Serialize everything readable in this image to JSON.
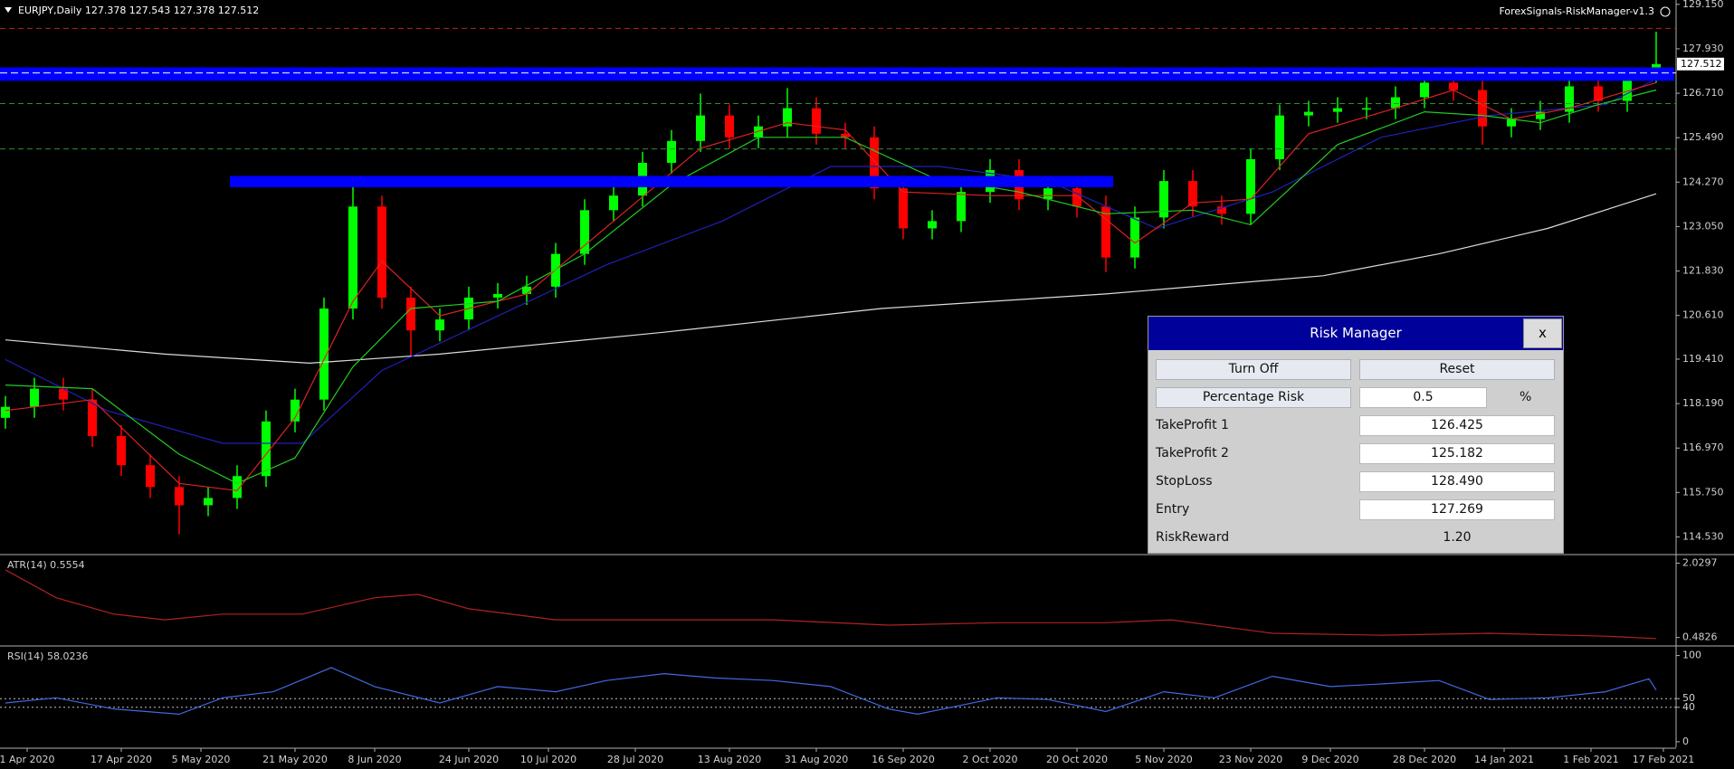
{
  "window": {
    "indicator_name": "ForexSignals-RiskManager-v1.3"
  },
  "chart_data": [
    {
      "type": "candlestick",
      "title": "EURJPY,Daily  127.378 127.543 127.378 127.512",
      "up_color": "#00ff00",
      "down_color": "#ff0000",
      "x": [
        0,
        4,
        8,
        12,
        16,
        20,
        24,
        28,
        32,
        36,
        40,
        44,
        48,
        52,
        56,
        60,
        64,
        68,
        72,
        76,
        80,
        84,
        88,
        92,
        96,
        100,
        104,
        108,
        112,
        116,
        120,
        124,
        128,
        132,
        136,
        140,
        144,
        148,
        152,
        156,
        160,
        164,
        168,
        172,
        176,
        180,
        184,
        188,
        192,
        196,
        200,
        204,
        208,
        212,
        216,
        220,
        224,
        228
      ],
      "open": [
        117.8,
        118.1,
        118.6,
        118.3,
        117.3,
        116.5,
        115.9,
        115.4,
        115.6,
        116.2,
        117.7,
        118.3,
        120.8,
        123.6,
        121.1,
        120.2,
        120.5,
        121.1,
        121.2,
        121.4,
        122.3,
        123.5,
        123.9,
        124.8,
        125.4,
        126.1,
        125.5,
        125.8,
        126.3,
        125.6,
        125.5,
        124.1,
        123.0,
        123.2,
        124.0,
        124.6,
        123.8,
        124.1,
        123.6,
        122.2,
        123.3,
        124.3,
        123.6,
        123.4,
        124.9,
        126.1,
        126.2,
        126.3,
        126.3,
        126.6,
        127.0,
        126.8,
        125.8,
        126.0,
        126.2,
        126.9,
        126.5,
        127.1
      ],
      "high": [
        118.4,
        118.9,
        118.9,
        118.6,
        117.6,
        116.8,
        116.2,
        115.9,
        116.5,
        118.0,
        118.6,
        121.1,
        124.3,
        123.9,
        121.4,
        120.8,
        121.4,
        121.5,
        121.7,
        122.6,
        123.8,
        124.2,
        125.1,
        125.7,
        126.7,
        126.4,
        126.1,
        126.85,
        126.6,
        125.9,
        125.8,
        124.4,
        123.5,
        124.3,
        124.9,
        124.9,
        124.4,
        124.4,
        123.9,
        123.6,
        124.6,
        124.6,
        123.9,
        125.2,
        126.4,
        126.5,
        126.6,
        126.6,
        126.9,
        127.35,
        127.3,
        127.1,
        126.3,
        126.5,
        127.2,
        127.2,
        127.4,
        128.4
      ],
      "low": [
        117.5,
        117.8,
        118.0,
        117.0,
        116.2,
        115.6,
        114.6,
        115.1,
        115.3,
        115.9,
        117.4,
        118.0,
        120.5,
        120.8,
        119.5,
        119.9,
        120.2,
        120.8,
        120.9,
        121.1,
        122.0,
        123.2,
        123.6,
        124.5,
        125.1,
        125.2,
        125.2,
        125.5,
        125.3,
        125.2,
        123.8,
        122.7,
        122.7,
        122.9,
        123.7,
        123.5,
        123.5,
        123.3,
        121.8,
        121.9,
        123.0,
        123.3,
        123.1,
        123.1,
        124.6,
        125.8,
        125.9,
        126.0,
        126.0,
        126.3,
        126.5,
        125.3,
        125.5,
        125.7,
        125.9,
        126.2,
        126.2,
        127.0
      ],
      "close": [
        118.1,
        118.6,
        118.3,
        117.3,
        116.5,
        115.9,
        115.4,
        115.6,
        116.2,
        117.7,
        118.3,
        120.8,
        123.6,
        121.1,
        120.2,
        120.5,
        121.1,
        121.2,
        121.4,
        122.3,
        123.5,
        123.9,
        124.8,
        125.4,
        126.1,
        125.5,
        125.8,
        126.3,
        125.6,
        125.5,
        124.1,
        123.0,
        123.2,
        124.0,
        124.6,
        123.8,
        124.1,
        123.6,
        122.2,
        123.3,
        124.3,
        123.6,
        123.4,
        124.9,
        126.1,
        126.2,
        126.3,
        126.3,
        126.6,
        127.0,
        126.8,
        125.8,
        126.0,
        126.2,
        126.9,
        126.5,
        127.1,
        127.512
      ],
      "series": [
        {
          "color": "#dcdcdc",
          "x": [
            0,
            22,
            42,
            60,
            91,
            121,
            152,
            182,
            198,
            213,
            228
          ],
          "values": [
            119.94,
            119.55,
            119.3,
            119.55,
            120.15,
            120.8,
            121.2,
            121.7,
            122.3,
            123.0,
            123.95
          ]
        },
        {
          "color": "#2020b8",
          "x": [
            0,
            14,
            30,
            41,
            52,
            67,
            83,
            99,
            114,
            129,
            144,
            159,
            175,
            190,
            205,
            221,
            228
          ],
          "values": [
            119.4,
            118.0,
            117.1,
            117.1,
            119.1,
            120.5,
            122.0,
            123.2,
            124.7,
            124.7,
            124.3,
            123.0,
            124.0,
            125.5,
            126.1,
            126.4,
            127.1
          ]
        },
        {
          "color": "#dd2222",
          "x": [
            0,
            12,
            24,
            32,
            40,
            48,
            52,
            60,
            72,
            84,
            96,
            108,
            116,
            124,
            136,
            148,
            156,
            164,
            172,
            180,
            192,
            200,
            208,
            216,
            228
          ],
          "values": [
            118.0,
            118.3,
            116.0,
            115.8,
            117.8,
            121.0,
            122.1,
            120.6,
            121.2,
            123.2,
            125.2,
            125.9,
            125.7,
            124.0,
            123.9,
            123.9,
            122.6,
            123.7,
            123.8,
            125.6,
            126.3,
            126.8,
            126.0,
            126.3,
            127.0
          ]
        },
        {
          "color": "#22cc22",
          "x": [
            0,
            12,
            24,
            32,
            40,
            48,
            56,
            68,
            80,
            92,
            104,
            116,
            128,
            140,
            152,
            164,
            172,
            184,
            196,
            204,
            212,
            220,
            228
          ],
          "values": [
            118.7,
            118.6,
            116.8,
            116.0,
            116.7,
            119.2,
            120.8,
            121.0,
            122.3,
            124.2,
            125.5,
            125.5,
            124.4,
            124.0,
            123.4,
            123.5,
            123.1,
            125.3,
            126.2,
            126.1,
            125.9,
            126.4,
            126.8
          ]
        }
      ],
      "zones": [
        {
          "color": "#0000ff",
          "from": 127.05,
          "to": 127.42
        },
        {
          "color": "#0000ff",
          "from": 124.13,
          "to": 124.44,
          "x": [
            31,
            153
          ]
        }
      ],
      "current_price": 127.512,
      "xlim": [
        -0.75,
        230.5
      ],
      "xticks": [
        {
          "value": 3,
          "label": "1 Apr 2020"
        },
        {
          "value": 16,
          "label": "17 Apr 2020"
        },
        {
          "value": 27,
          "label": "5 May 2020"
        },
        {
          "value": 40,
          "label": "21 May 2020"
        },
        {
          "value": 51,
          "label": "8 Jun 2020"
        },
        {
          "value": 64,
          "label": "24 Jun 2020"
        },
        {
          "value": 75,
          "label": "10 Jul 2020"
        },
        {
          "value": 87,
          "label": "28 Jul 2020"
        },
        {
          "value": 100,
          "label": "13 Aug 2020"
        },
        {
          "value": 112,
          "label": "31 Aug 2020"
        },
        {
          "value": 124,
          "label": "16 Sep 2020"
        },
        {
          "value": 136,
          "label": "2 Oct 2020"
        },
        {
          "value": 148,
          "label": "20 Oct 2020"
        },
        {
          "value": 160,
          "label": "5 Nov 2020"
        },
        {
          "value": 172,
          "label": "23 Nov 2020"
        },
        {
          "value": 183,
          "label": "9 Dec 2020"
        },
        {
          "value": 196,
          "label": "28 Dec 2020"
        },
        {
          "value": 207,
          "label": "14 Jan 2021"
        },
        {
          "value": 219,
          "label": "1 Feb 2021"
        },
        {
          "value": 229,
          "label": "17 Feb 2021"
        }
      ],
      "ylim": [
        114.07,
        129.27
      ],
      "yticks": [
        {
          "value": 129.15,
          "label": "129.150"
        },
        {
          "value": 127.93,
          "label": "127.930"
        },
        {
          "value": 126.71,
          "label": "126.710"
        },
        {
          "value": 125.49,
          "label": "125.490"
        },
        {
          "value": 124.27,
          "label": "124.270"
        },
        {
          "value": 123.05,
          "label": "123.050"
        },
        {
          "value": 121.83,
          "label": "121.830"
        },
        {
          "value": 120.61,
          "label": "120.610"
        },
        {
          "value": 119.41,
          "label": "119.410"
        },
        {
          "value": 118.19,
          "label": "118.190"
        },
        {
          "value": 116.97,
          "label": "116.970"
        },
        {
          "value": 115.75,
          "label": "115.750"
        },
        {
          "value": 114.53,
          "label": "114.530"
        }
      ]
    },
    {
      "type": "line",
      "title": "ATR(14) 0.5554",
      "series": [
        {
          "color": "#b22222",
          "x": [
            0,
            7,
            15,
            22,
            30,
            41,
            51,
            57,
            64,
            76,
            91,
            106,
            122,
            137,
            152,
            161,
            175,
            190,
            205,
            221,
            228
          ],
          "values": [
            1.89,
            1.31,
            0.97,
            0.85,
            0.97,
            0.97,
            1.31,
            1.38,
            1.08,
            0.85,
            0.85,
            0.85,
            0.74,
            0.79,
            0.79,
            0.85,
            0.57,
            0.53,
            0.57,
            0.51,
            0.46
          ]
        }
      ],
      "ylim": [
        0.344,
        2.19
      ],
      "yticks": [
        2.0297,
        0.4826
      ]
    },
    {
      "type": "line",
      "title": "RSI(14) 58.0236",
      "series": [
        {
          "color": "#4169e1",
          "x": [
            0,
            7,
            15,
            24,
            30,
            37,
            45,
            51,
            60,
            68,
            76,
            83,
            91,
            98,
            106,
            114,
            122,
            126,
            137,
            144,
            152,
            160,
            167,
            175,
            183,
            190,
            198,
            205,
            213,
            221,
            227,
            228
          ],
          "values": [
            45,
            51,
            38,
            32,
            51,
            58,
            86,
            64,
            45,
            64,
            58,
            71,
            79,
            74,
            71,
            64,
            38,
            32,
            51,
            49,
            35,
            58,
            51,
            76,
            64,
            67,
            71,
            49,
            51,
            58,
            73,
            60
          ]
        }
      ],
      "levels": [
        50,
        40
      ],
      "ylim": [
        -6.4,
        109
      ],
      "yticks": [
        100,
        50,
        40,
        0
      ]
    }
  ],
  "risk_manager": {
    "title": "Risk Manager",
    "close": "x",
    "buttons": [
      "Turn Off",
      "Reset"
    ],
    "percentage_risk": {
      "label": "Percentage Risk",
      "value": 0.5,
      "unit": "%"
    },
    "fields": [
      {
        "label": "TakeProfit 1",
        "value": 126.425
      },
      {
        "label": "TakeProfit 2",
        "value": 125.182
      },
      {
        "label": "StopLoss",
        "value": 128.49,
        "value_label": "128.490"
      },
      {
        "label": "Entry",
        "value": 127.269
      },
      {
        "label": "RiskReward",
        "value": 1.2,
        "value_label": "1.20"
      }
    ]
  }
}
